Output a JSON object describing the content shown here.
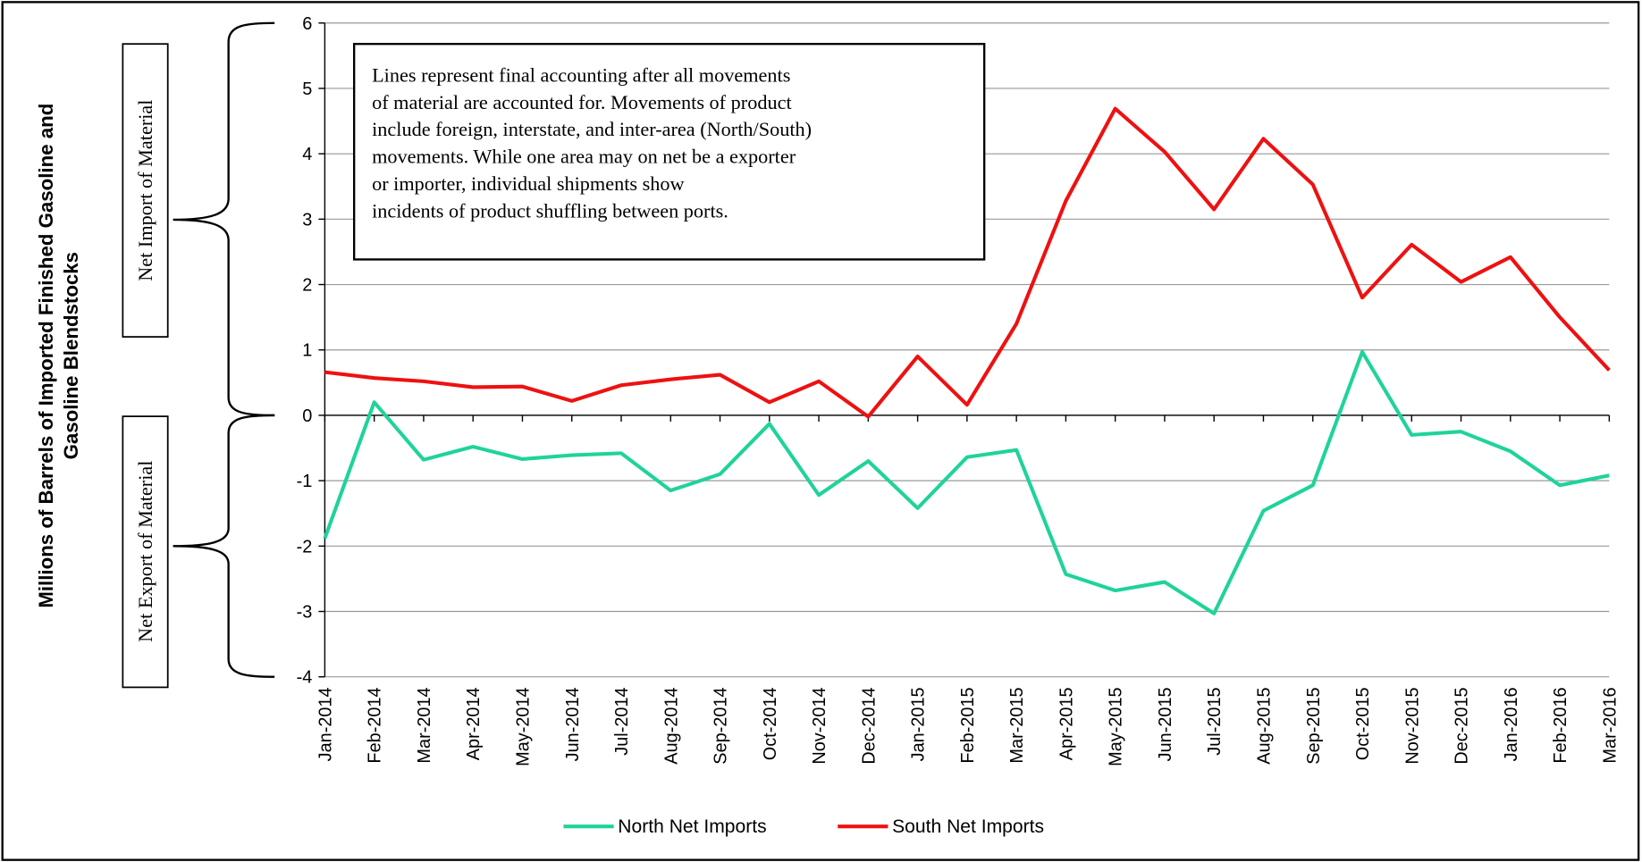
{
  "chart_data": {
    "type": "line",
    "ylabel": [
      "Millions of Barrels of Imported Finished Gasoline and",
      "Gasoline Blendstocks"
    ],
    "annotation": [
      "Lines represent final accounting after all movements",
      "of material are accounted for. Movements of product",
      "include foreign, interstate, and inter-area (North/South)",
      "movements. While one area may on net be a exporter",
      "or importer, individual shipments show",
      "incidents of product shuffling between ports."
    ],
    "bracket_labels": [
      "Net Import of Material",
      "Net Export of Material"
    ],
    "categories": [
      "Jan-2014",
      "Feb-2014",
      "Mar-2014",
      "Apr-2014",
      "May-2014",
      "Jun-2014",
      "Jul-2014",
      "Aug-2014",
      "Sep-2014",
      "Oct-2014",
      "Nov-2014",
      "Dec-2014",
      "Jan-2015",
      "Feb-2015",
      "Mar-2015",
      "Apr-2015",
      "May-2015",
      "Jun-2015",
      "Jul-2015",
      "Aug-2015",
      "Sep-2015",
      "Oct-2015",
      "Nov-2015",
      "Dec-2015",
      "Jan-2016",
      "Feb-2016",
      "Mar-2016"
    ],
    "series": [
      {
        "name": "North Net Imports",
        "color": "#1fd39b",
        "values": [
          -1.88,
          0.2,
          -0.68,
          -0.48,
          -0.67,
          -0.61,
          -0.58,
          -1.15,
          -0.9,
          -0.13,
          -1.22,
          -0.7,
          -1.42,
          -0.64,
          -0.53,
          -2.43,
          -2.68,
          -2.55,
          -3.03,
          -1.46,
          -1.07,
          0.97,
          -0.3,
          -0.25,
          -0.55,
          -1.07,
          -0.92
        ]
      },
      {
        "name": "South Net Imports",
        "color": "#ee1111",
        "values": [
          0.66,
          0.57,
          0.52,
          0.43,
          0.44,
          0.22,
          0.46,
          0.55,
          0.62,
          0.2,
          0.52,
          -0.02,
          0.9,
          0.16,
          1.4,
          3.28,
          4.69,
          4.03,
          3.15,
          4.23,
          3.53,
          1.8,
          2.61,
          2.04,
          2.42,
          1.5,
          0.69
        ]
      }
    ],
    "ylim": [
      -4,
      6
    ],
    "yticks": [
      -4,
      -3,
      -2,
      -1,
      0,
      1,
      2,
      3,
      4,
      5,
      6
    ],
    "grid": true
  }
}
